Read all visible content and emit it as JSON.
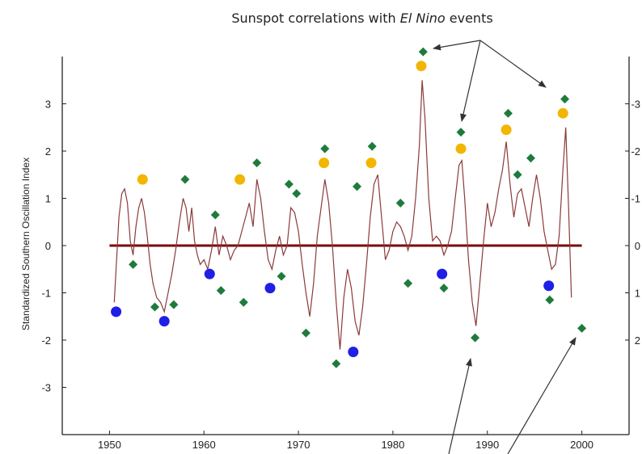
{
  "chart_data": {
    "type": "line",
    "title": "Sunspot correlations with ",
    "title_italic": "El Nino",
    "title_suffix": " events",
    "ylabel": "Standardized Southern Oscillation Index",
    "xlim": [
      1945,
      2005
    ],
    "ylim": [
      -4,
      4
    ],
    "grid": false,
    "x_ticks": [
      {
        "value": 1950,
        "label": "1950"
      },
      {
        "value": 1960,
        "label": "1960"
      },
      {
        "value": 1970,
        "label": "1970"
      },
      {
        "value": 1980,
        "label": "1980"
      },
      {
        "value": 1990,
        "label": "1990"
      },
      {
        "value": 2000,
        "label": "2000"
      }
    ],
    "y_ticks_left": [
      {
        "value": 3,
        "label": "3"
      },
      {
        "value": 2,
        "label": "2"
      },
      {
        "value": 1,
        "label": "1"
      },
      {
        "value": 0,
        "label": "0"
      },
      {
        "value": -1,
        "label": "-1"
      },
      {
        "value": -2,
        "label": "-2"
      },
      {
        "value": -3,
        "label": "-3"
      }
    ],
    "y_ticks_right": [
      {
        "value": 3,
        "label": "-3"
      },
      {
        "value": 2,
        "label": "-2"
      },
      {
        "value": 1,
        "label": "-1"
      },
      {
        "value": 0,
        "label": "0"
      },
      {
        "value": -1,
        "label": "1"
      },
      {
        "value": -2,
        "label": "2"
      }
    ],
    "colors": {
      "soi_line": "#8b3a3a",
      "zero_line": "#7a0a0a",
      "green_marker": "#1e7b3c",
      "yellow_marker": "#f2b600",
      "blue_marker": "#1f1fe6",
      "axis": "#222222",
      "arrow": "#333333"
    },
    "series": [
      {
        "marker": "line",
        "x": [
          1950.5,
          1951.0,
          1951.3,
          1951.6,
          1951.9,
          1952.2,
          1952.5,
          1952.8,
          1953.1,
          1953.4,
          1953.7,
          1954.0,
          1954.3,
          1954.6,
          1955.0,
          1955.4,
          1955.8,
          1956.2,
          1956.6,
          1957.0,
          1957.4,
          1957.8,
          1958.1,
          1958.4,
          1958.7,
          1959.0,
          1959.3,
          1959.6,
          1960.0,
          1960.4,
          1960.8,
          1961.2,
          1961.6,
          1962.0,
          1962.4,
          1962.8,
          1963.2,
          1963.6,
          1964.0,
          1964.4,
          1964.8,
          1965.2,
          1965.6,
          1966.0,
          1966.4,
          1966.8,
          1967.2,
          1967.6,
          1968.0,
          1968.4,
          1968.8,
          1969.2,
          1969.6,
          1970.0,
          1970.4,
          1970.8,
          1971.2,
          1971.6,
          1972.0,
          1972.4,
          1972.8,
          1973.2,
          1973.6,
          1974.0,
          1974.4,
          1974.8,
          1975.2,
          1975.6,
          1976.0,
          1976.4,
          1976.8,
          1977.2,
          1977.6,
          1978.0,
          1978.4,
          1978.8,
          1979.2,
          1979.6,
          1980.0,
          1980.4,
          1980.8,
          1981.2,
          1981.6,
          1982.0,
          1982.4,
          1982.8,
          1983.1,
          1983.4,
          1983.8,
          1984.2,
          1984.6,
          1985.0,
          1985.4,
          1985.8,
          1986.2,
          1986.6,
          1987.0,
          1987.3,
          1987.6,
          1988.0,
          1988.4,
          1988.8,
          1989.2,
          1989.6,
          1990.0,
          1990.4,
          1990.8,
          1991.2,
          1991.6,
          1992.0,
          1992.4,
          1992.8,
          1993.2,
          1993.6,
          1994.0,
          1994.4,
          1994.8,
          1995.2,
          1995.6,
          1996.0,
          1996.4,
          1996.8,
          1997.2,
          1997.6,
          1998.0,
          1998.3,
          1998.6,
          1998.9
        ],
        "y": [
          -1.2,
          0.6,
          1.1,
          1.2,
          0.9,
          0.1,
          -0.2,
          0.4,
          0.8,
          1.0,
          0.7,
          0.2,
          -0.4,
          -0.8,
          -1.1,
          -1.2,
          -1.4,
          -1.0,
          -0.6,
          -0.1,
          0.5,
          1.0,
          0.8,
          0.3,
          0.8,
          0.1,
          -0.2,
          -0.4,
          -0.3,
          -0.5,
          -0.1,
          0.4,
          -0.2,
          0.2,
          0.0,
          -0.3,
          -0.1,
          0.0,
          0.3,
          0.6,
          0.9,
          0.4,
          1.4,
          1.0,
          0.3,
          -0.3,
          -0.5,
          -0.1,
          0.2,
          -0.2,
          0.0,
          0.8,
          0.7,
          0.3,
          -0.4,
          -1.0,
          -1.5,
          -0.8,
          0.2,
          0.8,
          1.4,
          0.9,
          0.0,
          -1.2,
          -2.2,
          -1.1,
          -0.5,
          -0.9,
          -1.6,
          -1.9,
          -1.3,
          -0.4,
          0.6,
          1.3,
          1.5,
          0.6,
          -0.3,
          -0.1,
          0.3,
          0.5,
          0.4,
          0.2,
          -0.1,
          0.2,
          1.0,
          2.1,
          3.5,
          2.7,
          1.0,
          0.1,
          0.2,
          0.1,
          -0.2,
          0.0,
          0.3,
          1.0,
          1.7,
          1.8,
          1.0,
          -0.3,
          -1.2,
          -1.7,
          -0.8,
          0.1,
          0.9,
          0.4,
          0.7,
          1.2,
          1.6,
          2.2,
          1.3,
          0.6,
          1.1,
          1.2,
          0.8,
          0.4,
          1.0,
          1.5,
          1.0,
          0.3,
          -0.1,
          -0.5,
          -0.4,
          0.2,
          1.6,
          2.5,
          0.8,
          -1.1
        ]
      },
      {
        "marker": "green-diamond",
        "x": [
          1952.5,
          1954.8,
          1956.8,
          1958.0,
          1961.2,
          1961.8,
          1964.2,
          1965.6,
          1968.2,
          1969.0,
          1969.8,
          1970.8,
          1972.8,
          1974.0,
          1976.2,
          1977.8,
          1980.8,
          1981.6,
          1983.2,
          1985.4,
          1987.2,
          1988.7,
          1992.2,
          1993.2,
          1994.6,
          1996.6,
          1998.2,
          2000.0
        ],
        "y": [
          -0.4,
          -1.3,
          -1.25,
          1.4,
          0.65,
          -0.95,
          -1.2,
          1.75,
          -0.65,
          1.3,
          1.1,
          -1.85,
          2.05,
          -2.5,
          1.25,
          2.1,
          0.9,
          -0.8,
          4.1,
          -0.9,
          2.4,
          -1.95,
          2.8,
          1.5,
          1.85,
          -1.15,
          3.1,
          -1.75
        ]
      },
      {
        "marker": "yellow-circle",
        "x": [
          1953.5,
          1963.8,
          1972.7,
          1977.7,
          1983.0,
          1987.2,
          1992.0,
          1998.0
        ],
        "y": [
          1.4,
          1.4,
          1.75,
          1.75,
          3.8,
          2.05,
          2.45,
          2.8
        ]
      },
      {
        "marker": "blue-circle",
        "x": [
          1950.7,
          1955.8,
          1960.6,
          1967.0,
          1975.8,
          1985.2,
          1996.5
        ],
        "y": [
          -1.4,
          -1.6,
          -0.6,
          -0.9,
          -2.25,
          -0.6,
          -0.85
        ]
      }
    ]
  }
}
